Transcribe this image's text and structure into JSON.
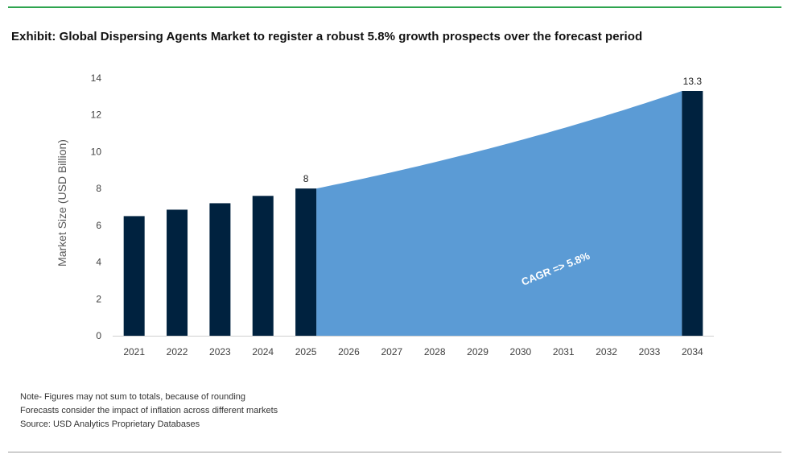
{
  "colors": {
    "bar": "#00223f",
    "forecast_area": "#5b9bd5",
    "top_rule": "#2ea44f",
    "axis_text": "#404040"
  },
  "notes": [
    "Note- Figures may not sum to totals, because of rounding",
    "Forecasts consider the impact of inflation across different markets",
    "Source: USD Analytics Proprietary Databases"
  ],
  "chart_data": {
    "type": "bar",
    "title": "Exhibit: Global Dispersing Agents Market to register a robust 5.8% growth prospects over the forecast period",
    "ylabel": "Market Size (USD Billion)",
    "xlabel": "",
    "ylim": [
      0,
      14
    ],
    "yticks": [
      0,
      2,
      4,
      6,
      8,
      10,
      12,
      14
    ],
    "grid": false,
    "categories": [
      "2021",
      "2022",
      "2023",
      "2024",
      "2025",
      "2026",
      "2027",
      "2028",
      "2029",
      "2030",
      "2031",
      "2032",
      "2033",
      "2034"
    ],
    "bars": [
      {
        "year": "2021",
        "value": 6.5
      },
      {
        "year": "2022",
        "value": 6.85
      },
      {
        "year": "2023",
        "value": 7.2
      },
      {
        "year": "2024",
        "value": 7.6
      },
      {
        "year": "2025",
        "value": 8,
        "label": "8"
      },
      {
        "year": "2034",
        "value": 13.3,
        "label": "13.3"
      }
    ],
    "forecast_area": {
      "from": "2025",
      "to": "2034",
      "start_value": 8,
      "end_value": 13.3,
      "growth": "5.8%"
    },
    "annotation": "CAGR => 5.8%"
  }
}
